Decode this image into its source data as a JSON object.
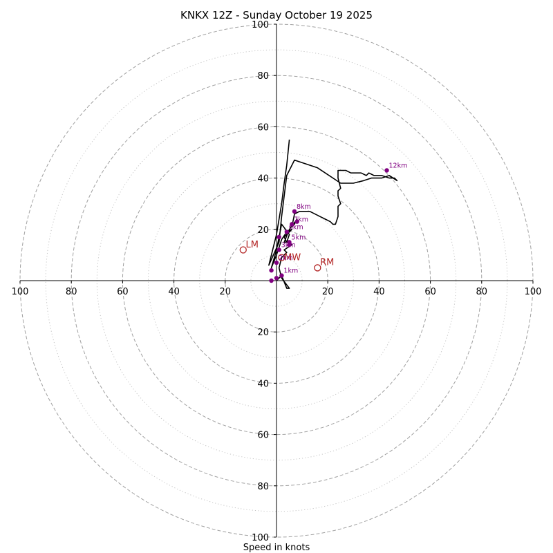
{
  "chart_data": {
    "type": "hodograph",
    "title": "KNKX 12Z - Sunday October 19 2025",
    "xlabel": "Speed in knots",
    "xlim": [
      -100,
      100
    ],
    "ylim": [
      -100,
      100
    ],
    "axis_ticks": [
      100,
      80,
      60,
      40,
      20
    ],
    "ring_radii_dashed": [
      20,
      40,
      60,
      80,
      100
    ],
    "ring_radii_dotted": [
      10,
      30,
      50,
      70,
      90
    ],
    "hodograph_trace": [
      [
        0,
        0
      ],
      [
        2,
        2
      ],
      [
        4,
        -3
      ],
      [
        5,
        -3
      ],
      [
        2,
        1
      ],
      [
        1,
        5
      ],
      [
        2,
        9
      ],
      [
        4,
        11
      ],
      [
        3,
        12
      ],
      [
        6,
        14
      ],
      [
        4,
        15
      ],
      [
        3,
        17
      ],
      [
        6,
        20
      ],
      [
        4,
        19
      ],
      [
        2,
        16
      ],
      [
        0,
        10
      ],
      [
        -2,
        5
      ],
      [
        0,
        12
      ],
      [
        2,
        22
      ],
      [
        5,
        18
      ],
      [
        4,
        15
      ],
      [
        3,
        15
      ],
      [
        5,
        20
      ],
      [
        8,
        24
      ],
      [
        7,
        22
      ],
      [
        6,
        21
      ],
      [
        7,
        26
      ],
      [
        9,
        27
      ],
      [
        13,
        27
      ],
      [
        17,
        25
      ],
      [
        19,
        24
      ],
      [
        21,
        23
      ],
      [
        22,
        22
      ],
      [
        23,
        22
      ],
      [
        24,
        25
      ],
      [
        24,
        29
      ],
      [
        25,
        30
      ],
      [
        24,
        33
      ],
      [
        24,
        35
      ],
      [
        25,
        36
      ],
      [
        24,
        40
      ],
      [
        24,
        43
      ],
      [
        27,
        43
      ],
      [
        29,
        42
      ],
      [
        31,
        42
      ],
      [
        33,
        42
      ],
      [
        35,
        41
      ],
      [
        36,
        42
      ],
      [
        38,
        41
      ],
      [
        41,
        41
      ],
      [
        44,
        40
      ],
      [
        46,
        40
      ],
      [
        47,
        39
      ],
      [
        44,
        41
      ],
      [
        41,
        40
      ],
      [
        37,
        40
      ],
      [
        34,
        39
      ],
      [
        30,
        38
      ],
      [
        25,
        38
      ],
      [
        16,
        44
      ],
      [
        7,
        47
      ],
      [
        4,
        41
      ],
      [
        2,
        25
      ],
      [
        1,
        15
      ],
      [
        -3,
        6
      ],
      [
        -2,
        10
      ],
      [
        0,
        18
      ],
      [
        2,
        30
      ],
      [
        3,
        38
      ],
      [
        4,
        45
      ],
      [
        5,
        55
      ]
    ],
    "height_markers": [
      {
        "label": "",
        "u": -2,
        "v": 0
      },
      {
        "label": "",
        "u": 0,
        "v": 1
      },
      {
        "label": "1km",
        "u": 2,
        "v": 2
      },
      {
        "label": "",
        "u": -2,
        "v": 4
      },
      {
        "label": "2km",
        "u": 0,
        "v": 7
      },
      {
        "label": "3km",
        "u": 1,
        "v": 12
      },
      {
        "label": "",
        "u": 5,
        "v": 14
      },
      {
        "label": "",
        "u": 1,
        "v": 17
      },
      {
        "label": "5km",
        "u": 5,
        "v": 15
      },
      {
        "label": "6km",
        "u": 4,
        "v": 19
      },
      {
        "label": "7km",
        "u": 6,
        "v": 22
      },
      {
        "label": "",
        "u": 8,
        "v": 23
      },
      {
        "label": "8km",
        "u": 7,
        "v": 27
      },
      {
        "label": "12km",
        "u": 43,
        "v": 43
      }
    ],
    "motion_points": [
      {
        "label": "LM",
        "u": -13,
        "v": 12,
        "label_du": 1,
        "label_dv": 1
      },
      {
        "label": "MW",
        "u": 2,
        "v": 9,
        "label_du": 1,
        "label_dv": -1
      },
      {
        "label": "RM",
        "u": 16,
        "v": 5,
        "label_du": 1,
        "label_dv": 1
      }
    ],
    "colors": {
      "trace": "#000000",
      "markers": "#800080",
      "motion": "#b22222",
      "ring": "#a0a0a0",
      "ring_dotted": "#c4c4c4",
      "axis": "#000000"
    }
  }
}
